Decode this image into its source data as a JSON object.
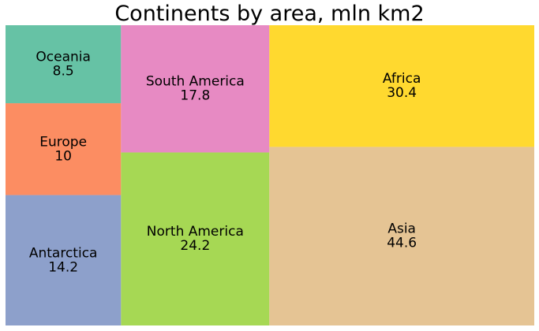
{
  "chart_data": {
    "type": "treemap",
    "title": "Continents by area, mln km2",
    "items": [
      {
        "label": "Oceania",
        "value": 8.5,
        "value_text": "8.5",
        "color": "#66c2a5"
      },
      {
        "label": "Europe",
        "value": 10,
        "value_text": "10",
        "color": "#fc8d62"
      },
      {
        "label": "Antarctica",
        "value": 14.2,
        "value_text": "14.2",
        "color": "#8da0cb"
      },
      {
        "label": "South America",
        "value": 17.8,
        "value_text": "17.8",
        "color": "#e78ac3"
      },
      {
        "label": "North America",
        "value": 24.2,
        "value_text": "24.2",
        "color": "#a6d854"
      },
      {
        "label": "Africa",
        "value": 30.4,
        "value_text": "30.4",
        "color": "#ffd92f"
      },
      {
        "label": "Asia",
        "value": 44.6,
        "value_text": "44.6",
        "color": "#e5c494"
      }
    ]
  }
}
